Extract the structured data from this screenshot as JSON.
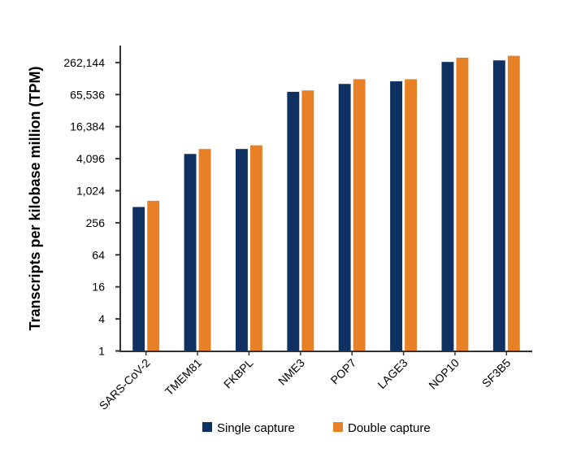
{
  "chart_data": {
    "type": "bar",
    "title": "",
    "xlabel": "",
    "ylabel": "Transcripts per kilobase million (TPM)",
    "yscale": "log4",
    "ylim": [
      1,
      535000
    ],
    "yticks": [
      1,
      4,
      16,
      64,
      256,
      1024,
      4096,
      16384,
      65536,
      262144
    ],
    "ytick_labels": [
      "1",
      "4",
      "16",
      "64",
      "256",
      "1,024",
      "4,096",
      "16,384",
      "65,536",
      "262,144"
    ],
    "categories": [
      "SARS-CoV-2",
      "TMEM81",
      "FKBPL",
      "NME3",
      "POP7",
      "LAGE3",
      "NOP10",
      "SF3B5"
    ],
    "series": [
      {
        "name": "Single capture",
        "color": "#0f3161",
        "values": [
          512,
          5080,
          6300,
          74700,
          105000,
          118000,
          272000,
          291000
        ]
      },
      {
        "name": "Double capture",
        "color": "#e88025",
        "values": [
          670,
          6300,
          7380,
          79200,
          129000,
          129000,
          327000,
          355000
        ]
      }
    ],
    "grid": false,
    "legend": "bottom-center"
  }
}
